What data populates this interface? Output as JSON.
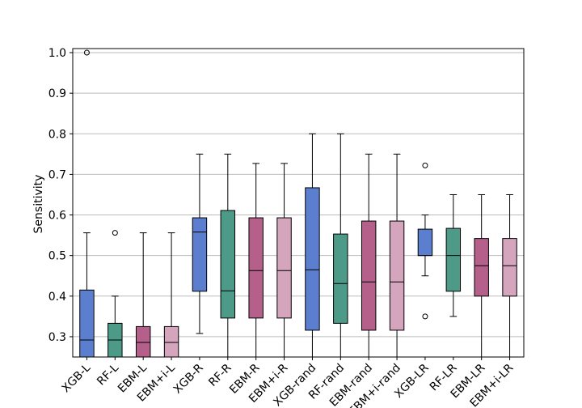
{
  "chart_data": {
    "type": "box",
    "y_label": "Sensitivity",
    "categories": [
      "XGB-L",
      "RF-L",
      "EBM-L",
      "EBM+i-L",
      "XGB-R",
      "RF-R",
      "EBM-R",
      "EBM+i-R",
      "XGB-rand",
      "RF-rand",
      "EBM-rand",
      "EBM+i-rand",
      "XGB-LR",
      "RF-LR",
      "EBM-LR",
      "EBM+i-LR"
    ],
    "boxes": [
      {
        "whislo": 0.2,
        "q1": 0.25,
        "med": 0.292,
        "q3": 0.415,
        "whishi": 0.556,
        "fliers": [
          1.0
        ],
        "color": "#5b7fce"
      },
      {
        "whislo": 0.2,
        "q1": 0.25,
        "med": 0.292,
        "q3": 0.333,
        "whishi": 0.4,
        "fliers": [
          0.556
        ],
        "color": "#4e9a88"
      },
      {
        "whislo": 0.2,
        "q1": 0.25,
        "med": 0.286,
        "q3": 0.325,
        "whishi": 0.556,
        "fliers": [],
        "color": "#b5608a"
      },
      {
        "whislo": 0.2,
        "q1": 0.25,
        "med": 0.286,
        "q3": 0.325,
        "whishi": 0.556,
        "fliers": [],
        "color": "#d4a5bd"
      },
      {
        "whislo": 0.308,
        "q1": 0.412,
        "med": 0.558,
        "q3": 0.593,
        "whishi": 0.75,
        "fliers": [],
        "color": "#5b7fce"
      },
      {
        "whislo": 0.2,
        "q1": 0.346,
        "med": 0.413,
        "q3": 0.611,
        "whishi": 0.75,
        "fliers": [],
        "color": "#4e9a88"
      },
      {
        "whislo": 0.2,
        "q1": 0.346,
        "med": 0.463,
        "q3": 0.593,
        "whishi": 0.727,
        "fliers": [],
        "color": "#b5608a"
      },
      {
        "whislo": 0.2,
        "q1": 0.346,
        "med": 0.463,
        "q3": 0.593,
        "whishi": 0.727,
        "fliers": [],
        "color": "#d4a5bd"
      },
      {
        "whislo": 0.2,
        "q1": 0.316,
        "med": 0.465,
        "q3": 0.667,
        "whishi": 0.8,
        "fliers": [],
        "color": "#5b7fce"
      },
      {
        "whislo": 0.2,
        "q1": 0.333,
        "med": 0.431,
        "q3": 0.553,
        "whishi": 0.8,
        "fliers": [],
        "color": "#4e9a88"
      },
      {
        "whislo": 0.2,
        "q1": 0.316,
        "med": 0.435,
        "q3": 0.585,
        "whishi": 0.75,
        "fliers": [],
        "color": "#b5608a"
      },
      {
        "whislo": 0.2,
        "q1": 0.316,
        "med": 0.435,
        "q3": 0.585,
        "whishi": 0.75,
        "fliers": [],
        "color": "#d4a5bd"
      },
      {
        "whislo": 0.45,
        "q1": 0.5,
        "med": 0.5,
        "q3": 0.565,
        "whishi": 0.6,
        "fliers": [
          0.722,
          0.35
        ],
        "color": "#5b7fce"
      },
      {
        "whislo": 0.35,
        "q1": 0.412,
        "med": 0.5,
        "q3": 0.567,
        "whishi": 0.65,
        "fliers": [],
        "color": "#4e9a88"
      },
      {
        "whislo": 0.2,
        "q1": 0.4,
        "med": 0.475,
        "q3": 0.542,
        "whishi": 0.65,
        "fliers": [],
        "color": "#b5608a"
      },
      {
        "whislo": 0.2,
        "q1": 0.4,
        "med": 0.475,
        "q3": 0.542,
        "whishi": 0.65,
        "fliers": [],
        "color": "#d4a5bd"
      }
    ],
    "ylim": [
      0.25,
      1.01
    ],
    "yticks": [
      0.3,
      0.4,
      0.5,
      0.6,
      0.7,
      0.8,
      0.9,
      {
        "value": 1.0,
        "label": "1.0"
      }
    ],
    "grid": true
  }
}
